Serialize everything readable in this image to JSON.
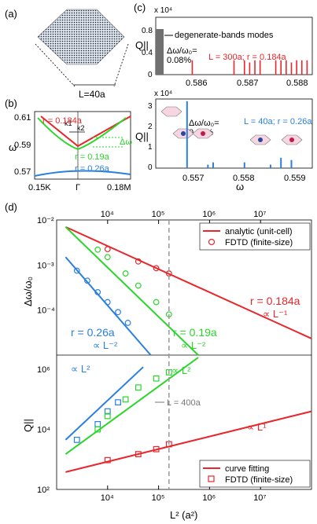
{
  "panel_labels": {
    "a": "(a)",
    "b": "(b)",
    "c": "(c)",
    "d": "(d)"
  },
  "panel_a": {
    "size_label": "L=40a"
  },
  "panel_b": {
    "y_label": "ω",
    "y_ticks": [
      "0.61",
      "0.59",
      "0.57"
    ],
    "x_ticks": [
      "0.15K",
      "Γ",
      "0.18M"
    ],
    "k1": "k1",
    "k2": "k2",
    "delta_label": "Δω",
    "curve_labels": {
      "r184": "r = 0.184a",
      "r19": "r = 0.19a",
      "r26": "r = 0.26a"
    },
    "colors": {
      "r184": "#e8262b",
      "r19": "#2bd62b",
      "r26": "#2a7fe0"
    }
  },
  "panel_c": {
    "top": {
      "exponent": "x 10⁴",
      "y_label": "Q||",
      "y_ticks": [
        "0.8",
        "0.4",
        "0"
      ],
      "x_ticks": [
        "0.586",
        "0.587",
        "0.588"
      ],
      "degenerate_label": "degenerate-bands modes",
      "delta_label": "Δω/ω₀=",
      "delta_value": "0.08%",
      "legend": "L = 300a; r = 0.184a"
    },
    "bottom": {
      "exponent": "x 10⁴",
      "y_label": "Q||",
      "y_ticks": [
        "3",
        "2",
        "1",
        "0"
      ],
      "x_ticks": [
        "0.557",
        "0.558",
        "0.559"
      ],
      "x_label": "ω",
      "delta_label": "Δω/ω₀=",
      "delta_value": "0.08%",
      "legend": "L = 40a; r = 0.26a"
    }
  },
  "panel_d": {
    "top_x_ticks": [
      "10⁴",
      "10⁵",
      "10⁶",
      "10⁷"
    ],
    "bottom_x_ticks": [
      "10⁴",
      "10⁵",
      "10⁶",
      "10⁷"
    ],
    "x_label": "L² (a²)",
    "top": {
      "y_label": "Δω/ω₀",
      "y_ticks": [
        "10⁻²",
        "10⁻³",
        "10⁻⁴"
      ],
      "legend": [
        "analytic (unit-cell)",
        "FDTD (finite-size)"
      ],
      "annotations": {
        "r184": "r = 0.184a",
        "r184_scale": "∝ L⁻¹",
        "r26": "r = 0.26a",
        "r26_scale": "∝ L⁻²",
        "r19": "r = 0.19a",
        "r19_scale": "∝ L⁻²"
      }
    },
    "bottom": {
      "y_label": "Q||",
      "y_ticks": [
        "10⁶",
        "10⁴",
        "10²"
      ],
      "legend": [
        "curve fitting",
        "FDTD (finite-size)"
      ],
      "annotations": {
        "blue_scale": "∝ L²",
        "green_scale": "∝ L²",
        "red_scale": "∝ L¹",
        "L400": "L = 400a"
      }
    }
  },
  "chart_data": [
    {
      "type": "bar",
      "title": "",
      "xlabel": "",
      "ylabel": "Q||",
      "xlim": [
        0.5851,
        0.5881
      ],
      "ylim": [
        0,
        8000
      ],
      "series": [
        {
          "name": "L = 300a; r = 0.184a",
          "x": [
            0.5858,
            0.5866,
            0.5868,
            0.5869,
            0.587,
            0.5871,
            0.5874,
            0.5875,
            0.5876,
            0.5877,
            0.5878,
            0.5879,
            0.588
          ],
          "values": [
            2000,
            2000,
            2000,
            1700,
            2000,
            2000,
            2000,
            2000,
            2000,
            1700,
            2000,
            2000,
            2000
          ]
        }
      ],
      "degenerate_region": [
        0.5851,
        0.5853
      ]
    },
    {
      "type": "bar",
      "xlabel": "ω",
      "ylabel": "Q||",
      "xlim": [
        0.5563,
        0.5593
      ],
      "ylim": [
        0,
        30000
      ],
      "series": [
        {
          "name": "L = 40a; r = 0.26a",
          "x": [
            0.5569,
            0.5573,
            0.5574,
            0.558,
            0.5585,
            0.5587,
            0.5589
          ],
          "values": [
            29000,
            1500,
            2500,
            2500,
            1500,
            4500,
            3500
          ]
        }
      ]
    },
    {
      "type": "line",
      "xlabel": "L² (a²)",
      "ylabel": "Δω/ω₀",
      "xscale": "log",
      "yscale": "log",
      "xlim": [
        1000,
        100000000.0
      ],
      "ylim": [
        1e-05,
        0.01
      ],
      "series": [
        {
          "name": "r = 0.184a",
          "x": [
            1500,
            100000000.0
          ],
          "y": [
            0.007,
            2.33e-05
          ]
        },
        {
          "name": "r = 0.26a",
          "x": [
            1500,
            70000
          ],
          "y": [
            0.0015,
            7e-07
          ]
        },
        {
          "name": "r = 0.19a",
          "x": [
            1500,
            600000
          ],
          "y": [
            0.007,
            5e-07
          ]
        }
      ],
      "fdtd_points": {
        "r = 0.184a": [
          [
            10000,
            0.00225
          ],
          [
            40000,
            0.0012
          ],
          [
            90000,
            0.00085
          ],
          [
            160000,
            0.00065
          ]
        ],
        "r = 0.26a": [
          [
            2500,
            0.00075
          ],
          [
            4000,
            0.00045
          ],
          [
            6400,
            0.00025
          ],
          [
            10000,
            0.00015
          ],
          [
            16000,
            9e-05
          ],
          [
            25000,
            5.2e-05
          ]
        ],
        "r = 0.19a": [
          [
            6400,
            0.0022
          ],
          [
            10000,
            0.0015
          ],
          [
            22500,
            0.00065
          ],
          [
            40000,
            0.00035
          ],
          [
            90000,
            0.00015
          ],
          [
            160000,
            8e-05
          ]
        ]
      }
    },
    {
      "type": "line",
      "xlabel": "L² (a²)",
      "ylabel": "Q||",
      "xscale": "log",
      "yscale": "log",
      "xlim": [
        1000,
        100000000.0
      ],
      "ylim": [
        100,
        3000000
      ],
      "series": [
        {
          "name": "blue",
          "x": [
            1500,
            50000
          ],
          "y": [
            4500,
            1200000
          ]
        },
        {
          "name": "green",
          "x": [
            1500,
            600000
          ],
          "y": [
            1500,
            2500000
          ]
        },
        {
          "name": "red",
          "x": [
            1500,
            100000000.0
          ],
          "y": [
            380,
            40000
          ]
        }
      ],
      "fdtd_points": {
        "blue": [
          [
            2500,
            4500
          ],
          [
            6400,
            15000
          ],
          [
            10000,
            40000
          ],
          [
            16000,
            80000
          ]
        ],
        "green": [
          [
            6400,
            10000
          ],
          [
            10000,
            28000
          ],
          [
            22500,
            100000
          ],
          [
            40000,
            250000
          ],
          [
            90000,
            500000
          ],
          [
            160000,
            800000
          ]
        ],
        "red": [
          [
            10000,
            950
          ],
          [
            40000,
            1500
          ],
          [
            90000,
            2200
          ],
          [
            160000,
            3200
          ]
        ]
      },
      "vline": {
        "x": 160000,
        "label": "L = 400a"
      }
    }
  ]
}
